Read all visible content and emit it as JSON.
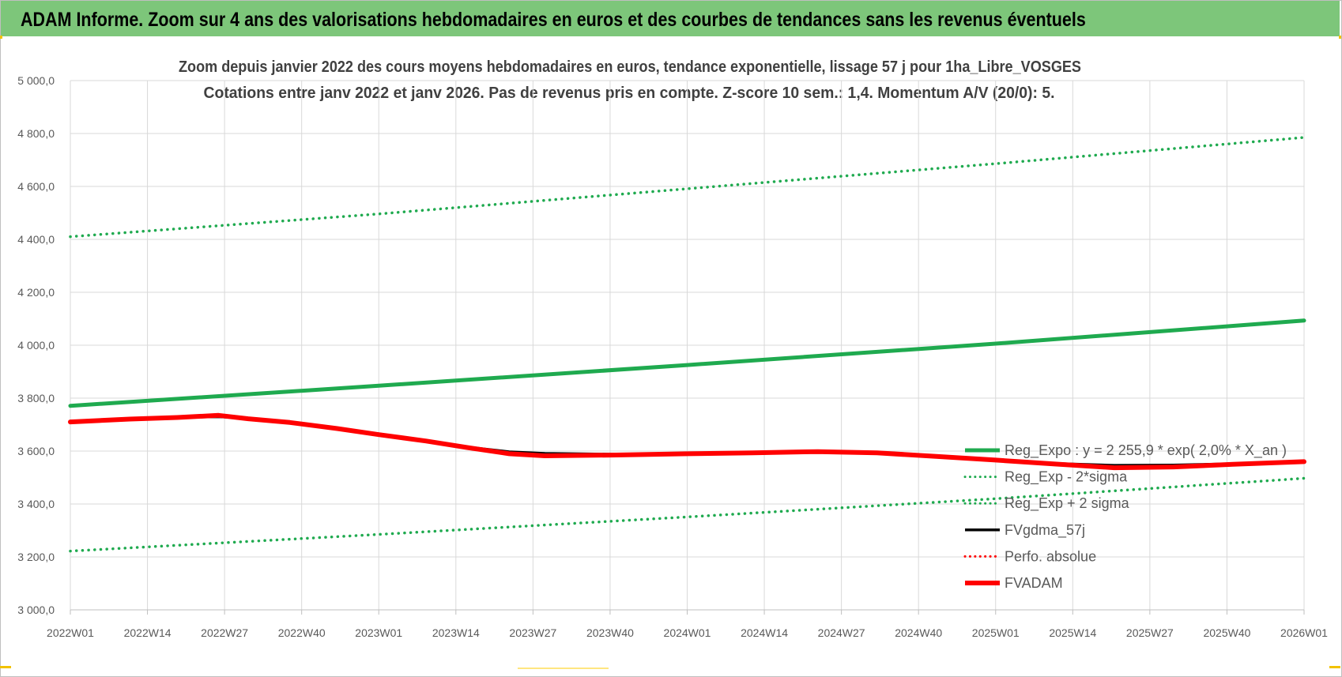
{
  "banner": {
    "title": "ADAM Informe. Zoom sur 4 ans des valorisations hebdomadaires en euros et des courbes de tendances sans les revenus éventuels"
  },
  "colors": {
    "banner_bg": "#7dc67a",
    "trend_green": "#1faa4f",
    "black_line": "#000000",
    "red_line": "#ff0000",
    "grid": "#d9d9d9"
  },
  "chart_data": {
    "type": "line",
    "title_line1": "Zoom depuis janvier 2022 des cours moyens hebdomadaires en euros, tendance exponentielle, lissage 57 j pour 1ha_Libre_VOSGES",
    "title_line2": "Cotations entre janv 2022 et janv 2026. Pas de revenus pris en compte. Z-score 10 sem.: 1,4. Momentum A/V (20/0): 5.",
    "ylim": [
      3000,
      5000
    ],
    "yticks": [
      "5 000,0",
      "4 800,0",
      "4 600,0",
      "4 400,0",
      "4 200,0",
      "4 000,0",
      "3 800,0",
      "3 600,0",
      "3 400,0",
      "3 200,0",
      "3 000,0"
    ],
    "x_tick_labels": [
      "2022W01",
      "2022W14",
      "2022W27",
      "2022W40",
      "2023W01",
      "2023W14",
      "2023W27",
      "2023W40",
      "2024W01",
      "2024W14",
      "2024W27",
      "2024W40",
      "2025W01",
      "2025W14",
      "2025W27",
      "2025W40",
      "2026W01"
    ],
    "grid": true,
    "legend_position": "right",
    "series": [
      {
        "name": "Reg_Expo : y = 2 255,9 * exp( 2,0% *  X_an )",
        "style": "solid",
        "color": "#1faa4f",
        "width": 5,
        "points": [
          [
            0,
            3771
          ],
          [
            52,
            3847
          ],
          [
            104,
            3925
          ],
          [
            156,
            4006
          ],
          [
            208,
            4093
          ]
        ]
      },
      {
        "name": "Reg_Exp - 2*sigma",
        "style": "dotted",
        "color": "#1faa4f",
        "width": 3.5,
        "points": [
          [
            0,
            3222
          ],
          [
            52,
            3285
          ],
          [
            104,
            3351
          ],
          [
            156,
            3420
          ],
          [
            208,
            3497
          ]
        ]
      },
      {
        "name": "Reg_Exp + 2 sigma",
        "style": "dotted",
        "color": "#1faa4f",
        "width": 3.5,
        "points": [
          [
            0,
            4410
          ],
          [
            52,
            4496
          ],
          [
            104,
            4591
          ],
          [
            156,
            4686
          ],
          [
            208,
            4785
          ]
        ]
      },
      {
        "name": "FVgdma_57j",
        "style": "solid",
        "color": "#000000",
        "width": 3.5,
        "points": [
          [
            0,
            3712
          ],
          [
            10,
            3722
          ],
          [
            18,
            3728
          ],
          [
            25,
            3730
          ],
          [
            30,
            3724
          ],
          [
            37,
            3708
          ],
          [
            45,
            3685
          ],
          [
            52,
            3665
          ],
          [
            60,
            3638
          ],
          [
            67,
            3615
          ],
          [
            74,
            3597
          ],
          [
            80,
            3591
          ],
          [
            92,
            3588
          ],
          [
            104,
            3590
          ],
          [
            115,
            3594
          ],
          [
            126,
            3596
          ],
          [
            136,
            3594
          ],
          [
            146,
            3582
          ],
          [
            156,
            3567
          ],
          [
            166,
            3553
          ],
          [
            176,
            3546
          ],
          [
            186,
            3547
          ],
          [
            196,
            3552
          ],
          [
            208,
            3560
          ]
        ]
      },
      {
        "name": "Perfo. absolue",
        "style": "dotted",
        "color": "#ff0000",
        "width": 3.5,
        "points": []
      },
      {
        "name": "FVADAM",
        "style": "solid",
        "color": "#ff0000",
        "width": 6,
        "points": [
          [
            0,
            3710
          ],
          [
            10,
            3721
          ],
          [
            18,
            3727
          ],
          [
            25,
            3735
          ],
          [
            30,
            3722
          ],
          [
            37,
            3708
          ],
          [
            45,
            3685
          ],
          [
            52,
            3662
          ],
          [
            60,
            3638
          ],
          [
            67,
            3613
          ],
          [
            74,
            3590
          ],
          [
            80,
            3582
          ],
          [
            92,
            3585
          ],
          [
            104,
            3590
          ],
          [
            115,
            3593
          ],
          [
            126,
            3598
          ],
          [
            136,
            3593
          ],
          [
            146,
            3580
          ],
          [
            156,
            3566
          ],
          [
            166,
            3551
          ],
          [
            176,
            3537
          ],
          [
            186,
            3540
          ],
          [
            196,
            3550
          ],
          [
            208,
            3560
          ]
        ]
      }
    ]
  }
}
